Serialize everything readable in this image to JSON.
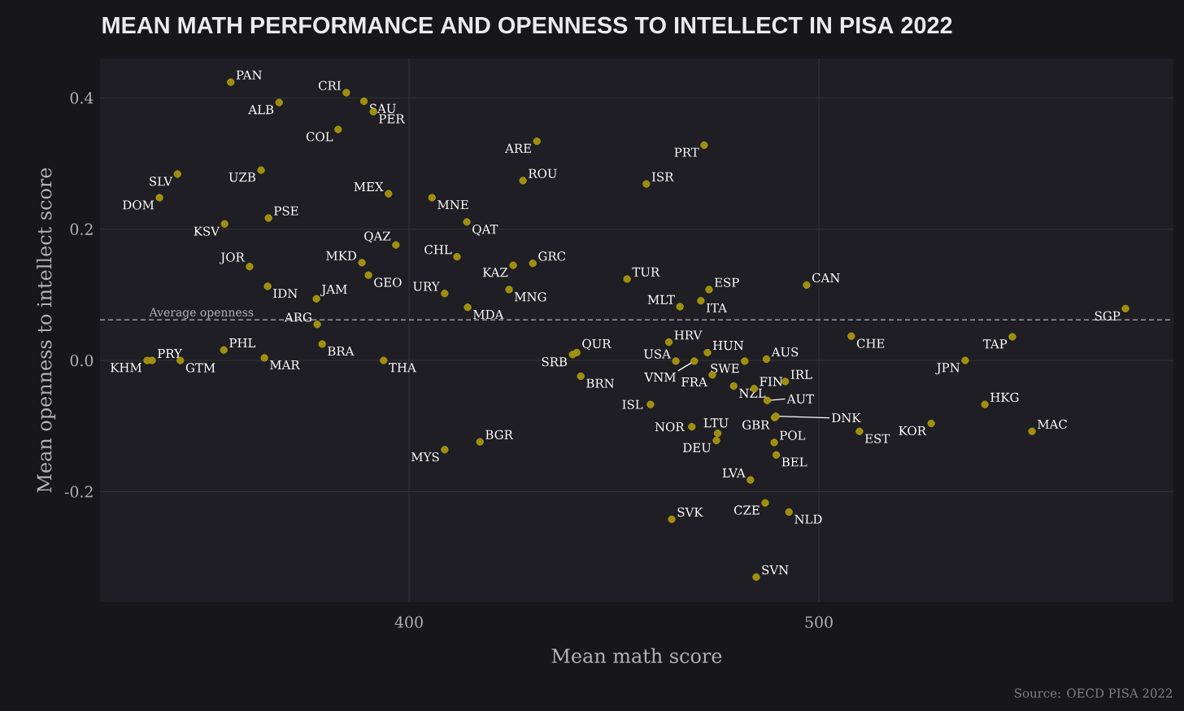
{
  "chart_data": {
    "type": "scatter",
    "title": "MEAN MATH PERFORMANCE AND OPENNESS TO INTELLECT IN PISA 2022",
    "xlabel": "Mean math score",
    "ylabel": "Mean openness to intellect score",
    "x": [
      356.5,
      384.7,
      389.0,
      368.3,
      391.3,
      382.7,
      431.2,
      472.0,
      343.5,
      363.9,
      427.8,
      457.9,
      339.1,
      395.0,
      405.6,
      414.1,
      365.7,
      355.0,
      396.8,
      411.7,
      361.1,
      388.5,
      390.1,
      425.4,
      430.2,
      453.2,
      497.0,
      365.5,
      473.2,
      424.4,
      408.7,
      377.4,
      471.2,
      466.1,
      414.3,
      574.8,
      377.6,
      507.9,
      547.2,
      463.4,
      378.8,
      354.8,
      440.9,
      439.9,
      472.8,
      465.1,
      469.6,
      487.2,
      481.9,
      337.3,
      336.1,
      344.2,
      364.7,
      393.8,
      491.8,
      474.0,
      441.9,
      535.7,
      484.2,
      479.2,
      487.4,
      540.5,
      458.9,
      489.2,
      489.5,
      509.9,
      527.4,
      552.0,
      469.0,
      475.3,
      475.0,
      489.1,
      489.6,
      417.3,
      408.7,
      483.3,
      486.9,
      492.7,
      464.1,
      484.7
    ],
    "values": [
      0.424,
      0.408,
      0.395,
      0.393,
      0.379,
      0.352,
      0.334,
      0.328,
      0.284,
      0.29,
      0.274,
      0.269,
      0.248,
      0.254,
      0.248,
      0.211,
      0.217,
      0.208,
      0.176,
      0.158,
      0.143,
      0.149,
      0.13,
      0.145,
      0.148,
      0.124,
      0.115,
      0.113,
      0.108,
      0.108,
      0.102,
      0.094,
      0.091,
      0.082,
      0.081,
      0.079,
      0.055,
      0.037,
      0.036,
      0.028,
      0.025,
      0.016,
      0.012,
      0.009,
      0.012,
      -0.001,
      -0.001,
      0.002,
      -0.001,
      0.0,
      0.0,
      0.0,
      0.004,
      0.0,
      -0.032,
      -0.022,
      -0.024,
      0.0,
      -0.043,
      -0.039,
      -0.061,
      -0.067,
      -0.067,
      -0.087,
      -0.085,
      -0.108,
      -0.096,
      -0.108,
      -0.101,
      -0.111,
      -0.122,
      -0.125,
      -0.144,
      -0.124,
      -0.136,
      -0.182,
      -0.217,
      -0.231,
      -0.242,
      -0.33
    ],
    "color": "#a08c10",
    "marker": "circle",
    "xlim": [
      324.6,
      586.5
    ],
    "ylim": [
      -0.368,
      0.46
    ],
    "xticks": [
      400,
      500
    ],
    "yticks": [
      -0.2,
      {
        "value": 0,
        "label": "0.0"
      },
      0.2,
      0.4
    ],
    "grid": true,
    "ref_lines": [
      {
        "axis": "y",
        "value": 0.062,
        "label": "Average openness",
        "color": "#b4b4b8",
        "line_style": "dashed"
      }
    ],
    "annotations": [
      "Source: OECD PISA 2022",
      {
        "text": "PAN",
        "x": 356.5,
        "y": 0.424
      },
      {
        "text": "CRI",
        "x": 384.7,
        "y": 0.408
      },
      {
        "text": "SAU",
        "x": 389.0,
        "y": 0.395
      },
      {
        "text": "ALB",
        "x": 368.3,
        "y": 0.393
      },
      {
        "text": "PER",
        "x": 391.3,
        "y": 0.379
      },
      {
        "text": "COL",
        "x": 382.7,
        "y": 0.352
      },
      {
        "text": "ARE",
        "x": 431.2,
        "y": 0.334
      },
      {
        "text": "PRT",
        "x": 472.0,
        "y": 0.328
      },
      {
        "text": "SLV",
        "x": 343.5,
        "y": 0.284
      },
      {
        "text": "UZB",
        "x": 363.9,
        "y": 0.29
      },
      {
        "text": "ROU",
        "x": 427.8,
        "y": 0.274
      },
      {
        "text": "ISR",
        "x": 457.9,
        "y": 0.269
      },
      {
        "text": "DOM",
        "x": 339.1,
        "y": 0.248
      },
      {
        "text": "MEX",
        "x": 395.0,
        "y": 0.254
      },
      {
        "text": "MNE",
        "x": 405.6,
        "y": 0.248
      },
      {
        "text": "QAT",
        "x": 414.1,
        "y": 0.211
      },
      {
        "text": "PSE",
        "x": 365.7,
        "y": 0.217
      },
      {
        "text": "KSV",
        "x": 355.0,
        "y": 0.208
      },
      {
        "text": "QAZ",
        "x": 396.8,
        "y": 0.176
      },
      {
        "text": "CHL",
        "x": 411.7,
        "y": 0.158
      },
      {
        "text": "JOR",
        "x": 361.1,
        "y": 0.143
      },
      {
        "text": "MKD",
        "x": 388.5,
        "y": 0.149
      },
      {
        "text": "GEO",
        "x": 390.1,
        "y": 0.13
      },
      {
        "text": "KAZ",
        "x": 425.4,
        "y": 0.145
      },
      {
        "text": "GRC",
        "x": 430.2,
        "y": 0.148
      },
      {
        "text": "TUR",
        "x": 453.2,
        "y": 0.124
      },
      {
        "text": "CAN",
        "x": 497.0,
        "y": 0.115
      },
      {
        "text": "IDN",
        "x": 365.5,
        "y": 0.113
      },
      {
        "text": "ESP",
        "x": 473.2,
        "y": 0.108
      },
      {
        "text": "MNG",
        "x": 424.4,
        "y": 0.108
      },
      {
        "text": "URY",
        "x": 408.7,
        "y": 0.102
      },
      {
        "text": "JAM",
        "x": 377.4,
        "y": 0.094
      },
      {
        "text": "ITA",
        "x": 471.2,
        "y": 0.091
      },
      {
        "text": "MLT",
        "x": 466.1,
        "y": 0.082
      },
      {
        "text": "MDA",
        "x": 414.3,
        "y": 0.081
      },
      {
        "text": "SGP",
        "x": 574.8,
        "y": 0.079
      },
      {
        "text": "ARG",
        "x": 377.6,
        "y": 0.055
      },
      {
        "text": "CHE",
        "x": 507.9,
        "y": 0.037
      },
      {
        "text": "TAP",
        "x": 547.2,
        "y": 0.036
      },
      {
        "text": "HRV",
        "x": 463.4,
        "y": 0.028
      },
      {
        "text": "BRA",
        "x": 378.8,
        "y": 0.025
      },
      {
        "text": "PHL",
        "x": 354.8,
        "y": 0.016
      },
      {
        "text": "QUR",
        "x": 440.9,
        "y": 0.012
      },
      {
        "text": "SRB",
        "x": 439.9,
        "y": 0.009
      },
      {
        "text": "HUN",
        "x": 472.8,
        "y": 0.012
      },
      {
        "text": "USA",
        "x": 465.1,
        "y": -0.001
      },
      {
        "text": "VNM",
        "x": 469.6,
        "y": -0.001
      },
      {
        "text": "AUS",
        "x": 487.2,
        "y": 0.002
      },
      {
        "text": "SWE",
        "x": 481.9,
        "y": -0.001
      },
      {
        "text": "PRY",
        "x": 337.3,
        "y": 0.0
      },
      {
        "text": "KHM",
        "x": 336.1,
        "y": 0.0
      },
      {
        "text": "GTM",
        "x": 344.2,
        "y": 0.0
      },
      {
        "text": "MAR",
        "x": 364.7,
        "y": 0.004
      },
      {
        "text": "THA",
        "x": 393.8,
        "y": 0.0
      },
      {
        "text": "IRL",
        "x": 491.8,
        "y": -0.032
      },
      {
        "text": "FRA",
        "x": 474.0,
        "y": -0.022
      },
      {
        "text": "BRN",
        "x": 441.9,
        "y": -0.024
      },
      {
        "text": "JPN",
        "x": 535.7,
        "y": 0.0
      },
      {
        "text": "FIN",
        "x": 484.2,
        "y": -0.043
      },
      {
        "text": "NZL",
        "x": 479.2,
        "y": -0.039
      },
      {
        "text": "AUT",
        "x": 487.4,
        "y": -0.061
      },
      {
        "text": "HKG",
        "x": 540.5,
        "y": -0.067
      },
      {
        "text": "ISL",
        "x": 458.9,
        "y": -0.067
      },
      {
        "text": "GBR",
        "x": 489.2,
        "y": -0.087
      },
      {
        "text": "DNK",
        "x": 489.5,
        "y": -0.085
      },
      {
        "text": "EST",
        "x": 509.9,
        "y": -0.108
      },
      {
        "text": "KOR",
        "x": 527.4,
        "y": -0.096
      },
      {
        "text": "MAC",
        "x": 552.0,
        "y": -0.108
      },
      {
        "text": "NOR",
        "x": 469.0,
        "y": -0.101
      },
      {
        "text": "LTU",
        "x": 475.3,
        "y": -0.111
      },
      {
        "text": "DEU",
        "x": 475.0,
        "y": -0.122
      },
      {
        "text": "POL",
        "x": 489.1,
        "y": -0.125
      },
      {
        "text": "BEL",
        "x": 489.6,
        "y": -0.144
      },
      {
        "text": "BGR",
        "x": 417.3,
        "y": -0.124
      },
      {
        "text": "MYS",
        "x": 408.7,
        "y": -0.136
      },
      {
        "text": "LVA",
        "x": 483.3,
        "y": -0.182
      },
      {
        "text": "CZE",
        "x": 486.9,
        "y": -0.217
      },
      {
        "text": "NLD",
        "x": 492.7,
        "y": -0.231
      },
      {
        "text": "SVK",
        "x": 464.1,
        "y": -0.242
      },
      {
        "text": "SVN",
        "x": 484.7,
        "y": -0.33
      }
    ]
  }
}
